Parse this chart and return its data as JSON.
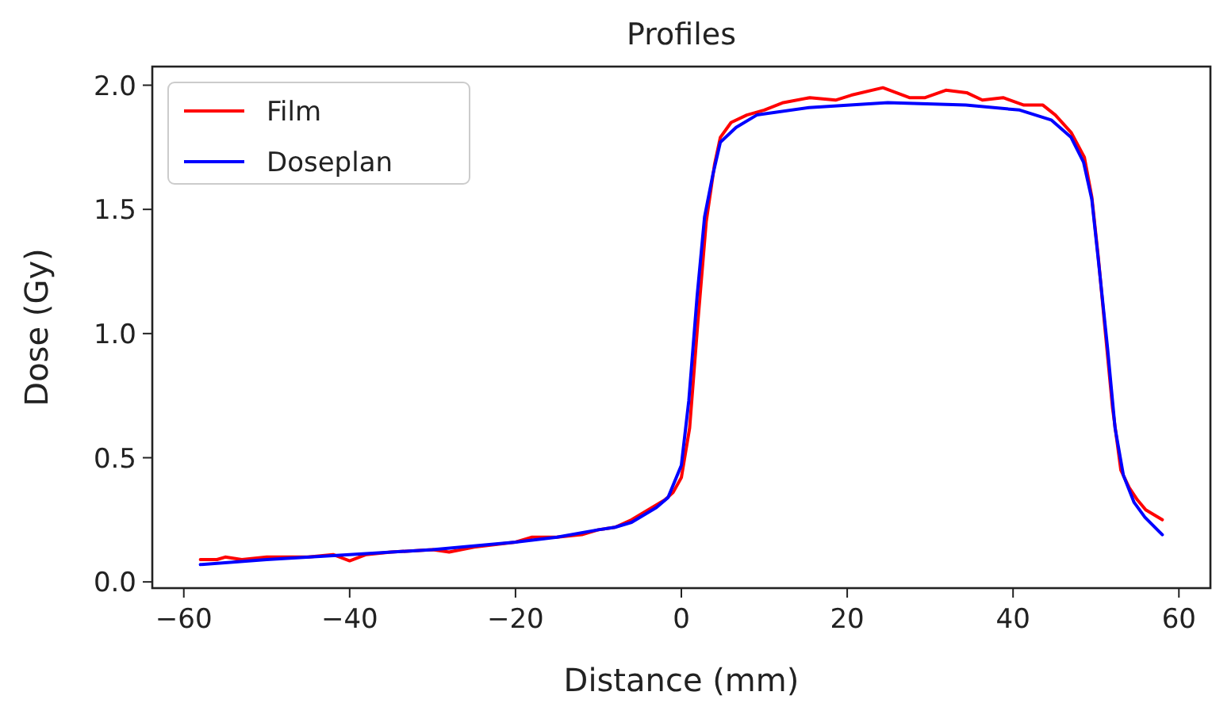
{
  "chart_data": {
    "type": "line",
    "title": "Profiles",
    "xlabel": "Distance (mm)",
    "ylabel": "Dose (Gy)",
    "xlim": [
      -63.8,
      63.8
    ],
    "ylim": [
      -0.025,
      2.075
    ],
    "xticks": [
      {
        "value": -60,
        "label": "−60"
      },
      {
        "value": -40,
        "label": "−40"
      },
      {
        "value": -20,
        "label": "−20"
      },
      0,
      20,
      40,
      60
    ],
    "yticks": [
      {
        "value": 0,
        "label": "0.0"
      },
      {
        "value": 0.5,
        "label": "0.5"
      },
      {
        "value": 1,
        "label": "1.0"
      },
      {
        "value": 1.5,
        "label": "1.5"
      },
      {
        "value": 2,
        "label": "2.0"
      }
    ],
    "legend": "top left",
    "grid": false,
    "marker": "none",
    "line_style": "solid",
    "series": [
      {
        "name": "Film",
        "color": "#ff0000",
        "x": [
          -58,
          -56,
          -55,
          -53,
          -50,
          -45,
          -42,
          -40,
          -38,
          -35,
          -30,
          -28,
          -25,
          -20,
          -18,
          -15,
          -12,
          -10,
          -8,
          -6,
          -4,
          -2,
          -1,
          0,
          1,
          2,
          3,
          4,
          4.7,
          6,
          7.9,
          10,
          12.3,
          15.5,
          18.6,
          20.5,
          24.3,
          27.5,
          29.4,
          31.9,
          34.4,
          36.3,
          38.8,
          41.3,
          43.6,
          45.1,
          47,
          48.6,
          49.5,
          50.3,
          51,
          52,
          53,
          54,
          55,
          56,
          57,
          58
        ],
        "values": [
          0.09,
          0.09,
          0.1,
          0.09,
          0.1,
          0.1,
          0.11,
          0.085,
          0.11,
          0.12,
          0.13,
          0.12,
          0.14,
          0.16,
          0.18,
          0.18,
          0.19,
          0.21,
          0.22,
          0.25,
          0.29,
          0.33,
          0.36,
          0.42,
          0.62,
          1.05,
          1.45,
          1.68,
          1.79,
          1.85,
          1.88,
          1.9,
          1.93,
          1.95,
          1.94,
          1.96,
          1.99,
          1.95,
          1.95,
          1.98,
          1.97,
          1.94,
          1.95,
          1.92,
          1.92,
          1.88,
          1.81,
          1.71,
          1.55,
          1.3,
          1.05,
          0.7,
          0.45,
          0.38,
          0.33,
          0.29,
          0.27,
          0.25
        ]
      },
      {
        "name": "Doseplan",
        "color": "#0000ff",
        "x": [
          -58,
          -50,
          -40,
          -30,
          -20,
          -15,
          -10,
          -8,
          -6,
          -4,
          -3,
          -1.6,
          0,
          0.9,
          1.9,
          2.8,
          3.8,
          4.7,
          6.6,
          9.1,
          15.4,
          24.9,
          34.3,
          40.8,
          44.6,
          47,
          48.5,
          49.5,
          50.4,
          51.4,
          52.3,
          53.3,
          54.6,
          55.9,
          57.4,
          58
        ],
        "values": [
          0.07,
          0.09,
          0.11,
          0.13,
          0.16,
          0.18,
          0.21,
          0.22,
          0.24,
          0.28,
          0.3,
          0.34,
          0.47,
          0.73,
          1.15,
          1.47,
          1.64,
          1.77,
          1.83,
          1.88,
          1.91,
          1.93,
          1.92,
          1.9,
          1.86,
          1.79,
          1.69,
          1.54,
          1.26,
          0.94,
          0.62,
          0.43,
          0.32,
          0.26,
          0.21,
          0.19
        ]
      }
    ]
  }
}
